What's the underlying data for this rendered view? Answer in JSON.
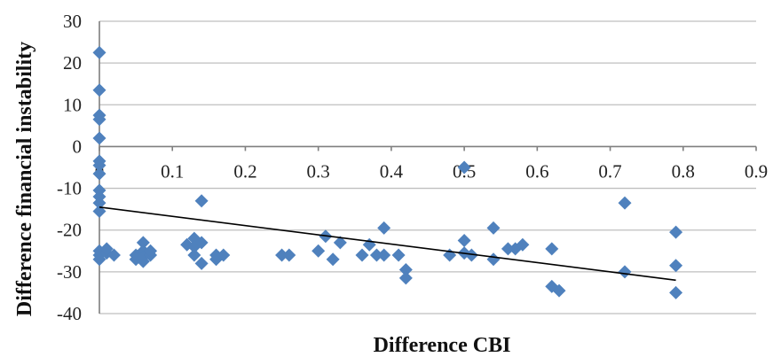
{
  "chart_data": {
    "type": "scatter",
    "title": "",
    "xlabel": "Difference CBI",
    "ylabel": "Difference financial instability",
    "xlim": [
      0,
      0.9
    ],
    "ylim": [
      -40,
      30
    ],
    "x_ticks": [
      "0",
      "0.1",
      "0.2",
      "0.3",
      "0.4",
      "0.5",
      "0.6",
      "0.7",
      "0.8",
      "0.9"
    ],
    "y_ticks": [
      "30",
      "20",
      "10",
      "0",
      "-10",
      "-20",
      "-30",
      "-40"
    ],
    "grid": true,
    "legend": "none",
    "marker": "diamond",
    "marker_color": "#4f81bd",
    "trendline": {
      "type": "linear",
      "x": [
        0,
        0.79
      ],
      "y": [
        -14.5,
        -32
      ],
      "color": "#000000"
    },
    "series": [
      {
        "x": [
          0,
          0,
          0,
          0,
          0,
          0,
          0,
          0,
          0,
          0,
          0,
          0,
          0,
          0,
          0,
          0.01,
          0.01,
          0.02,
          0.05,
          0.05,
          0.06,
          0.06,
          0.06,
          0.06,
          0.07,
          0.07,
          0.12,
          0.13,
          0.13,
          0.13,
          0.14,
          0.14,
          0.14,
          0.16,
          0.16,
          0.17,
          0.25,
          0.26,
          0.3,
          0.31,
          0.32,
          0.33,
          0.36,
          0.37,
          0.38,
          0.39,
          0.39,
          0.41,
          0.42,
          0.42,
          0.48,
          0.5,
          0.5,
          0.5,
          0.51,
          0.54,
          0.54,
          0.56,
          0.57,
          0.58,
          0.62,
          0.62,
          0.63,
          0.72,
          0.72,
          0.79,
          0.79,
          0.79
        ],
        "y": [
          22.5,
          13.5,
          7.5,
          6.5,
          2,
          -3.5,
          -4.5,
          -6.5,
          -10.5,
          -12,
          -13.5,
          -15.5,
          -26,
          -27,
          -25,
          -25.5,
          -24.5,
          -26,
          -26,
          -27,
          -23,
          -27.5,
          -25,
          -26.5,
          -26,
          -25,
          -23.5,
          -22,
          -26,
          -24,
          -28,
          -23,
          -13,
          -26,
          -27,
          -26,
          -26,
          -26,
          -25,
          -21.5,
          -27,
          -23,
          -26,
          -23.5,
          -26,
          -19.5,
          -26,
          -26,
          -29.5,
          -31.5,
          -26,
          -22.5,
          -25.5,
          -5,
          -26,
          -19.5,
          -27,
          -24.5,
          -24.5,
          -23.5,
          -24.5,
          -33.5,
          -34.5,
          -13.5,
          -30,
          -20.5,
          -28.5,
          -35
        ]
      }
    ]
  }
}
